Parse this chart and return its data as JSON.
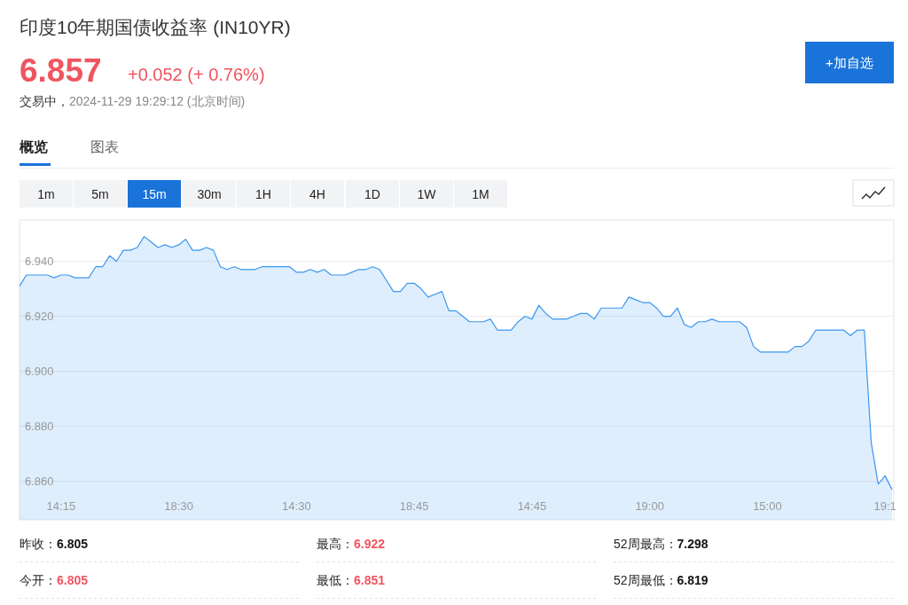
{
  "chart_data": {
    "type": "area",
    "title": "印度10年期国债收益率  (IN10YR)",
    "annotations": [
      "6.857",
      "+0.052 (+ 0.76%)",
      "交易中，",
      "2024-11-29 19:29:12  (北京时间)",
      "概览",
      "图表",
      "1m",
      "5m",
      "15m",
      "30m",
      "1H",
      "4H",
      "1D",
      "1W",
      "1M",
      "+加自选",
      "昨收：",
      "6.805",
      "最高：",
      "6.922",
      "52周最高：",
      "7.298",
      "今开：",
      "6.805",
      "最低：",
      "6.851",
      "52周最低：",
      "6.819"
    ],
    "categories": [
      null,
      null,
      null,
      null,
      null,
      null,
      "14:15",
      null,
      null,
      null,
      null,
      null,
      null,
      null,
      null,
      null,
      null,
      null,
      null,
      null,
      null,
      null,
      null,
      "18:30",
      null,
      null,
      null,
      null,
      null,
      null,
      null,
      null,
      null,
      null,
      null,
      null,
      null,
      null,
      null,
      null,
      "14:30",
      null,
      null,
      null,
      null,
      null,
      null,
      null,
      null,
      null,
      null,
      null,
      null,
      null,
      null,
      null,
      null,
      "18:45",
      null,
      null,
      null,
      null,
      null,
      null,
      null,
      null,
      null,
      null,
      null,
      null,
      null,
      null,
      null,
      null,
      "14:45",
      null,
      null,
      null,
      null,
      null,
      null,
      null,
      null,
      null,
      null,
      null,
      null,
      null,
      null,
      null,
      null,
      "19:00",
      null,
      null,
      null,
      null,
      null,
      null,
      null,
      null,
      null,
      null,
      null,
      null,
      null,
      null,
      null,
      null,
      "15:00",
      null,
      null,
      null,
      null,
      null,
      null,
      null,
      null,
      null,
      null,
      null,
      null,
      null,
      null,
      null,
      null,
      "19:1",
      null
    ],
    "series": [
      {
        "color": "#3a97f0",
        "values": [
          6.931,
          6.935,
          6.935,
          6.935,
          6.935,
          6.934,
          6.935,
          6.935,
          6.934,
          6.934,
          6.934,
          6.938,
          6.938,
          6.942,
          6.94,
          6.944,
          6.944,
          6.945,
          6.949,
          6.947,
          6.945,
          6.946,
          6.945,
          6.946,
          6.948,
          6.944,
          6.944,
          6.945,
          6.944,
          6.938,
          6.937,
          6.938,
          6.937,
          6.937,
          6.937,
          6.938,
          6.938,
          6.938,
          6.938,
          6.938,
          6.936,
          6.936,
          6.937,
          6.936,
          6.937,
          6.935,
          6.935,
          6.935,
          6.936,
          6.937,
          6.937,
          6.938,
          6.937,
          6.933,
          6.929,
          6.929,
          6.932,
          6.932,
          6.93,
          6.927,
          6.928,
          6.929,
          6.922,
          6.922,
          6.92,
          6.918,
          6.918,
          6.918,
          6.919,
          6.915,
          6.915,
          6.915,
          6.918,
          6.92,
          6.919,
          6.924,
          6.921,
          6.919,
          6.919,
          6.919,
          6.92,
          6.921,
          6.921,
          6.919,
          6.923,
          6.923,
          6.923,
          6.923,
          6.927,
          6.926,
          6.925,
          6.925,
          6.923,
          6.92,
          6.92,
          6.923,
          6.917,
          6.916,
          6.918,
          6.918,
          6.919,
          6.918,
          6.918,
          6.918,
          6.918,
          6.916,
          6.909,
          6.907,
          6.907,
          6.907,
          6.907,
          6.907,
          6.909,
          6.909,
          6.911,
          6.915,
          6.915,
          6.915,
          6.915,
          6.915,
          6.913,
          6.915,
          6.915,
          6.874,
          6.859,
          6.862,
          6.857
        ]
      }
    ],
    "ylim": [
      6.846,
      6.955
    ],
    "yticks": [
      {
        "value": 6.86,
        "label": "6.860"
      },
      {
        "value": 6.88,
        "label": "6.880"
      },
      {
        "value": 6.9,
        "label": "6.900"
      },
      {
        "value": 6.92,
        "label": "6.920"
      },
      {
        "value": 6.94,
        "label": "6.940"
      }
    ],
    "grid": "y"
  }
}
